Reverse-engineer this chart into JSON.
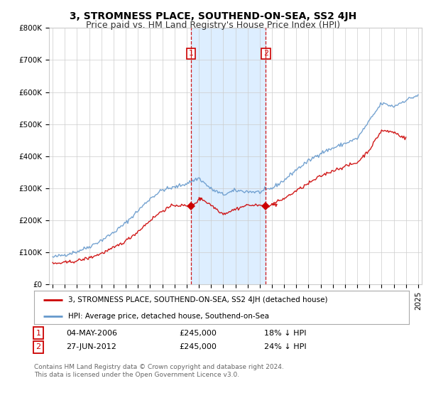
{
  "title": "3, STROMNESS PLACE, SOUTHEND-ON-SEA, SS2 4JH",
  "subtitle": "Price paid vs. HM Land Registry's House Price Index (HPI)",
  "ylim": [
    0,
    800000
  ],
  "yticks": [
    0,
    100000,
    200000,
    300000,
    400000,
    500000,
    600000,
    700000,
    800000
  ],
  "ytick_labels": [
    "£0",
    "£100K",
    "£200K",
    "£300K",
    "£400K",
    "£500K",
    "£600K",
    "£700K",
    "£800K"
  ],
  "sale1_year": 2006.35,
  "sale1_price": 245000,
  "sale2_year": 2012.5,
  "sale2_price": 245000,
  "sale1_date": "04-MAY-2006",
  "sale1_hpi_diff": "18% ↓ HPI",
  "sale2_date": "27-JUN-2012",
  "sale2_hpi_diff": "24% ↓ HPI",
  "red_line_color": "#cc0000",
  "blue_line_color": "#6699cc",
  "shade_color": "#ddeeff",
  "grid_color": "#cccccc",
  "background_color": "#ffffff",
  "legend_label_red": "3, STROMNESS PLACE, SOUTHEND-ON-SEA, SS2 4JH (detached house)",
  "legend_label_blue": "HPI: Average price, detached house, Southend-on-Sea",
  "footer_text": "Contains HM Land Registry data © Crown copyright and database right 2024.\nThis data is licensed under the Open Government Licence v3.0.",
  "title_fontsize": 10,
  "subtitle_fontsize": 9,
  "tick_fontsize": 7.5,
  "legend_fontsize": 7.5
}
